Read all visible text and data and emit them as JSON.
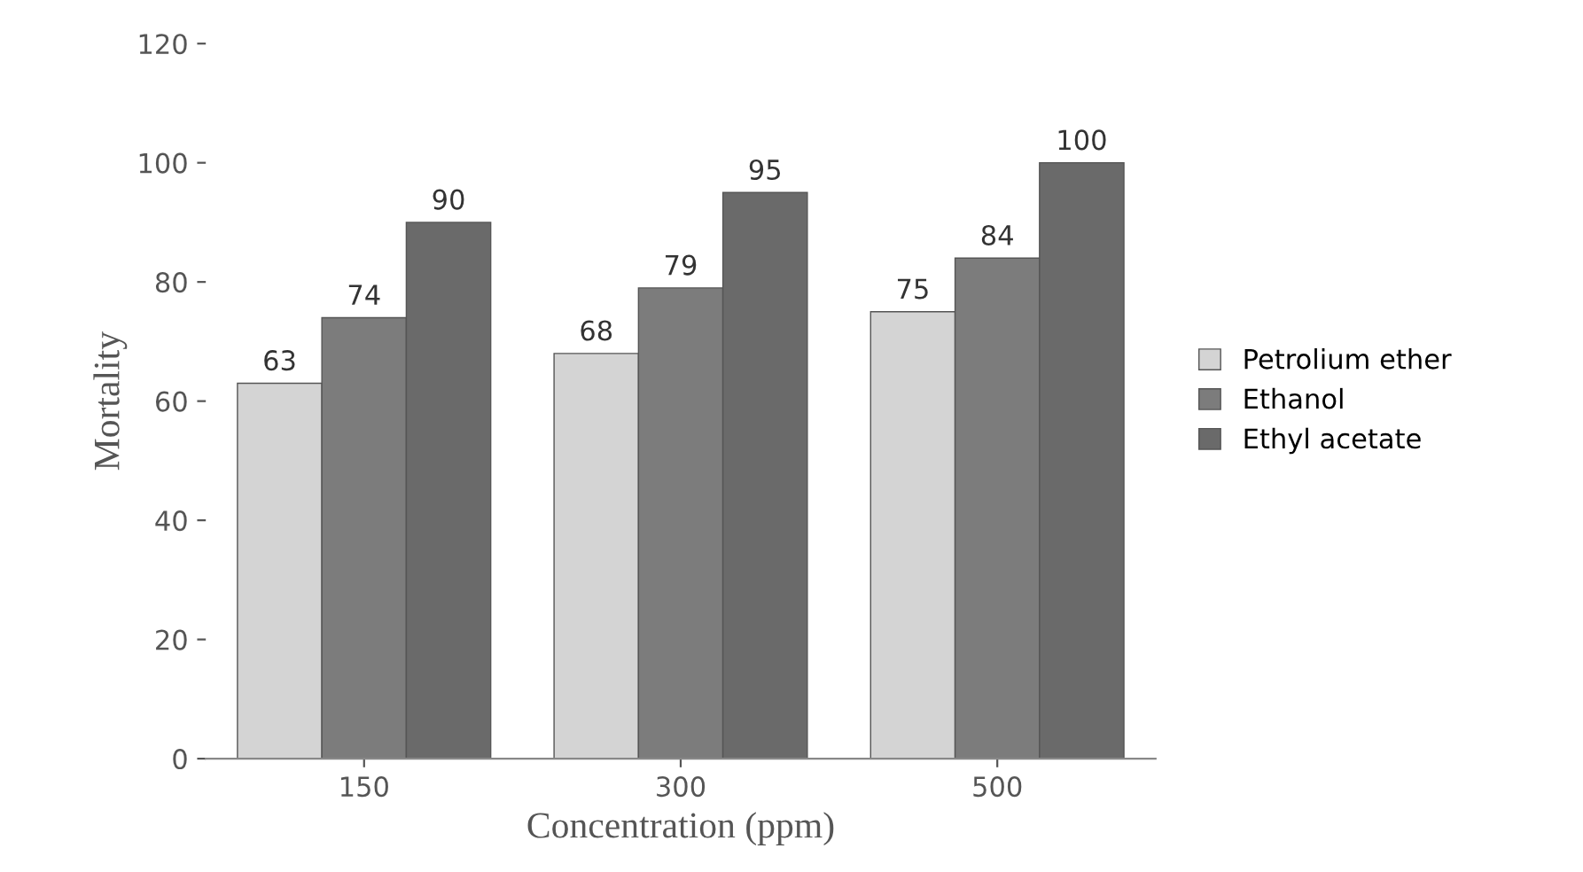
{
  "chart_data": {
    "type": "bar",
    "xlabel": "Concentration (ppm)",
    "ylabel": "Mortality",
    "categories": [
      "150",
      "300",
      "500"
    ],
    "series": [
      {
        "name": "Petrolium ether",
        "color": "#d4d4d4",
        "values": [
          63,
          68,
          75
        ]
      },
      {
        "name": "Ethanol",
        "color": "#7c7c7c",
        "values": [
          74,
          79,
          84
        ]
      },
      {
        "name": "Ethyl acetate",
        "color": "#6a6a6a",
        "values": [
          90,
          95,
          100
        ]
      }
    ],
    "ylim": [
      0,
      120
    ],
    "yticks": [
      0,
      20,
      40,
      60,
      80,
      100,
      120
    ],
    "data_labels": true,
    "legend": "right",
    "grid": false
  }
}
